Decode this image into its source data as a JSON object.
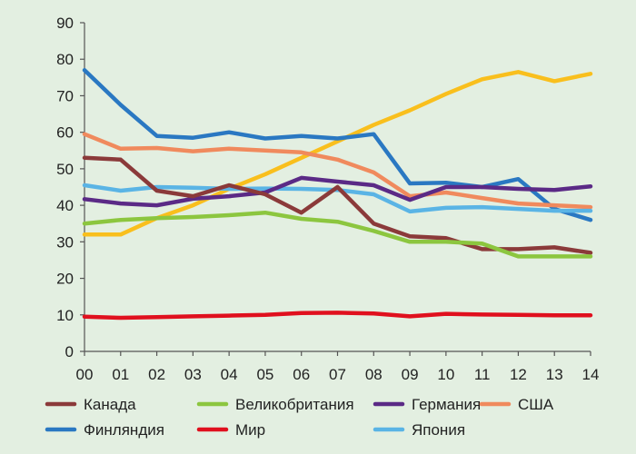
{
  "chart_data": {
    "type": "line",
    "x": [
      "00",
      "01",
      "02",
      "03",
      "04",
      "05",
      "06",
      "07",
      "08",
      "09",
      "10",
      "11",
      "12",
      "13",
      "14"
    ],
    "ylim": [
      0,
      90
    ],
    "yticks": [
      0,
      10,
      20,
      30,
      40,
      50,
      60,
      70,
      80,
      90
    ],
    "grid": false,
    "legend_position": "bottom",
    "title": "",
    "xlabel": "",
    "ylabel": "",
    "series": [
      {
        "name": "Канада",
        "color": "#8b3a3a",
        "values": [
          53,
          52.5,
          44,
          42.5,
          45.5,
          43,
          38,
          45,
          35,
          31.5,
          31,
          28,
          28,
          28.5,
          27
        ]
      },
      {
        "name": "Великобритания",
        "color": "#8cc63f",
        "values": [
          35,
          36,
          36.5,
          36.8,
          37.3,
          38,
          36.3,
          35.5,
          33,
          30,
          30,
          29.5,
          26,
          26,
          26
        ]
      },
      {
        "name": "Германия",
        "color": "#5b2a86",
        "values": [
          41.7,
          40.5,
          40,
          41.8,
          42.5,
          43.5,
          47.5,
          46.5,
          45.5,
          41.5,
          45,
          45,
          44.5,
          44.2,
          45.2
        ]
      },
      {
        "name": "США",
        "color": "#f08a5d",
        "values": [
          59.5,
          55.5,
          55.7,
          54.8,
          55.5,
          55,
          54.5,
          52.5,
          49,
          42.5,
          43.5,
          42,
          40.5,
          40,
          39.5
        ]
      },
      {
        "name": "Финляндия",
        "color": "#2a78c2",
        "values": [
          77,
          67.5,
          59,
          58.5,
          60,
          58.3,
          59,
          58.3,
          59.5,
          46,
          46.2,
          45,
          47.2,
          39,
          36
        ]
      },
      {
        "name": "Мир",
        "color": "#e0101e",
        "values": [
          9.5,
          9.2,
          9.4,
          9.6,
          9.8,
          10,
          10.5,
          10.6,
          10.4,
          9.6,
          10.3,
          10.1,
          10,
          9.9,
          9.9
        ]
      },
      {
        "name": "Япония",
        "color": "#5ab4e5",
        "values": [
          45.5,
          44,
          45,
          44.8,
          44.5,
          44.6,
          44.5,
          44.2,
          43,
          38.3,
          39.3,
          39.5,
          39,
          38.5,
          38.5
        ]
      },
      {
        "name": "",
        "color": "#f9bf1d",
        "values": [
          32,
          32,
          36.5,
          40,
          44.5,
          48.5,
          53,
          57.5,
          62,
          66,
          70.5,
          74.5,
          76.5,
          74,
          76
        ]
      }
    ]
  },
  "legend": {
    "rows": [
      [
        "Канада",
        "Великобритания",
        "Германия",
        "США"
      ],
      [
        "Финляндия",
        "Мир",
        "Япония"
      ]
    ]
  }
}
